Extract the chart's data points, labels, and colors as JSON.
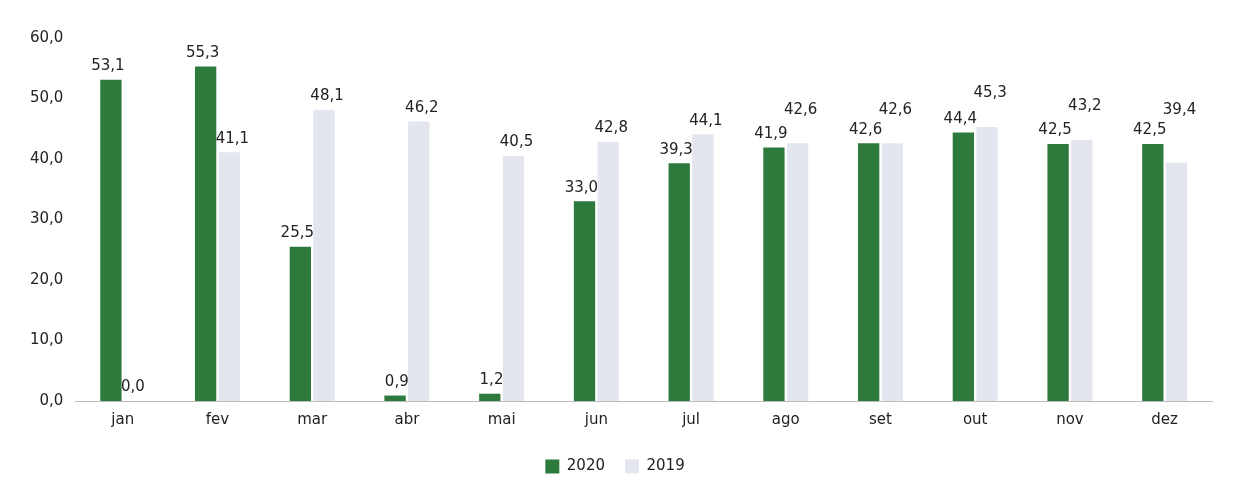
{
  "chart_data": {
    "type": "bar",
    "categories": [
      "jan",
      "fev",
      "mar",
      "abr",
      "mai",
      "jun",
      "jul",
      "ago",
      "set",
      "out",
      "nov",
      "dez"
    ],
    "series": [
      {
        "name": "2020",
        "color": "#2e7a3c",
        "values": [
          53.1,
          55.3,
          25.5,
          0.9,
          1.2,
          33.0,
          39.3,
          41.9,
          42.6,
          44.4,
          42.5,
          42.5
        ],
        "value_labels": [
          "53,1",
          "55,3",
          "25,5",
          "0,9",
          "1,2",
          "33,0",
          "39,3",
          "41,9",
          "42,6",
          "44,4",
          "42,5",
          "42,5"
        ]
      },
      {
        "name": "2019",
        "color": "#e3e5ef",
        "values": [
          0.0,
          41.1,
          48.1,
          46.2,
          40.5,
          42.8,
          44.1,
          42.6,
          42.6,
          45.3,
          43.2,
          39.4
        ],
        "value_labels": [
          "0,0",
          "41,1",
          "48,1",
          "46,2",
          "40,5",
          "42,8",
          "44,1",
          "42,6",
          "42,6",
          "45,3",
          "43,2",
          "39,4"
        ]
      }
    ],
    "ylim": [
      0,
      60
    ],
    "yticks": [
      {
        "value": 0,
        "label": "0,0"
      },
      {
        "value": 10,
        "label": "10,0"
      },
      {
        "value": 20,
        "label": "20,0"
      },
      {
        "value": 30,
        "label": "30,0"
      },
      {
        "value": 40,
        "label": "40,0"
      },
      {
        "value": 50,
        "label": "50,0"
      },
      {
        "value": 60,
        "label": "60,0"
      }
    ],
    "grid": false,
    "legend": "bottom"
  }
}
